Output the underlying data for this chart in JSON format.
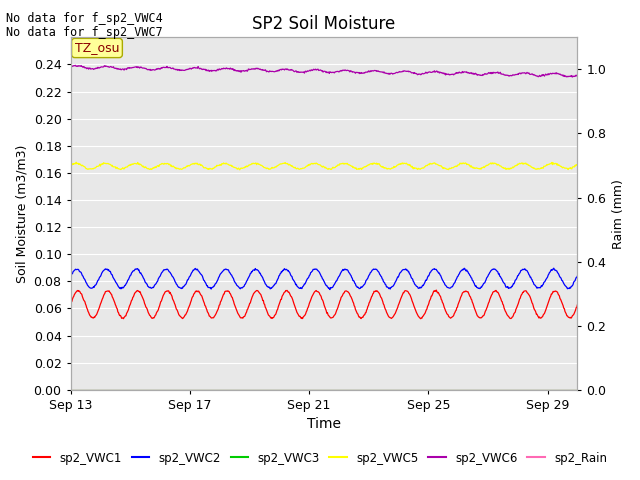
{
  "title": "SP2 Soil Moisture",
  "xlabel": "Time",
  "ylabel_left": "Soil Moisture (m3/m3)",
  "ylabel_right": "Raim (mm)",
  "annotations": [
    "No data for f_sp2_VWC4",
    "No data for f_sp2_VWC7"
  ],
  "tz_label": "TZ_osu",
  "x_ticks": [
    "Sep 13",
    "Sep 17",
    "Sep 21",
    "Sep 25",
    "Sep 29"
  ],
  "x_tick_days": [
    0,
    4,
    8,
    12,
    16
  ],
  "ylim_left": [
    0.0,
    0.26
  ],
  "ylim_right": [
    0.0,
    1.1
  ],
  "yticks_left": [
    0.0,
    0.02,
    0.04,
    0.06,
    0.08,
    0.1,
    0.12,
    0.14,
    0.16,
    0.18,
    0.2,
    0.22,
    0.24
  ],
  "yticks_right": [
    0.0,
    0.2,
    0.4,
    0.6,
    0.8,
    1.0
  ],
  "series": {
    "sp2_VWC1": {
      "color": "#ff0000",
      "base": 0.063,
      "amplitude": 0.01,
      "period_days": 1.0,
      "phase": 0.0,
      "noise": 0.0003,
      "label": "sp2_VWC1"
    },
    "sp2_VWC2": {
      "color": "#0000ff",
      "base": 0.082,
      "amplitude": 0.007,
      "period_days": 1.0,
      "phase": 0.3,
      "noise": 0.0003,
      "label": "sp2_VWC2"
    },
    "sp2_VWC3": {
      "color": "#00cc00",
      "base": 0.0,
      "amplitude": 0.0,
      "noise": 0.0,
      "label": "sp2_VWC3"
    },
    "sp2_VWC5": {
      "color": "#ffff00",
      "base": 0.165,
      "amplitude": 0.002,
      "period_days": 1.0,
      "phase": 0.5,
      "noise": 0.0003,
      "label": "sp2_VWC5"
    },
    "sp2_VWC6": {
      "color": "#aa00aa",
      "base": 0.238,
      "amplitude": 0.001,
      "period_days": 1.0,
      "phase": 0.2,
      "noise": 0.0003,
      "label": "sp2_VWC6",
      "trend": -0.00035
    },
    "sp2_Rain": {
      "color": "#ff69b4",
      "base": 0.0,
      "amplitude": 0.0,
      "noise": 0.0,
      "label": "sp2_Rain"
    }
  },
  "bg_color": "#e8e8e8",
  "grid_color": "#ffffff",
  "legend_items": [
    {
      "label": "sp2_VWC1",
      "color": "#ff0000"
    },
    {
      "label": "sp2_VWC2",
      "color": "#0000ff"
    },
    {
      "label": "sp2_VWC3",
      "color": "#00cc00"
    },
    {
      "label": "sp2_VWC5",
      "color": "#ffff00"
    },
    {
      "label": "sp2_VWC6",
      "color": "#aa00aa"
    },
    {
      "label": "sp2_Rain",
      "color": "#ff69b4"
    }
  ]
}
